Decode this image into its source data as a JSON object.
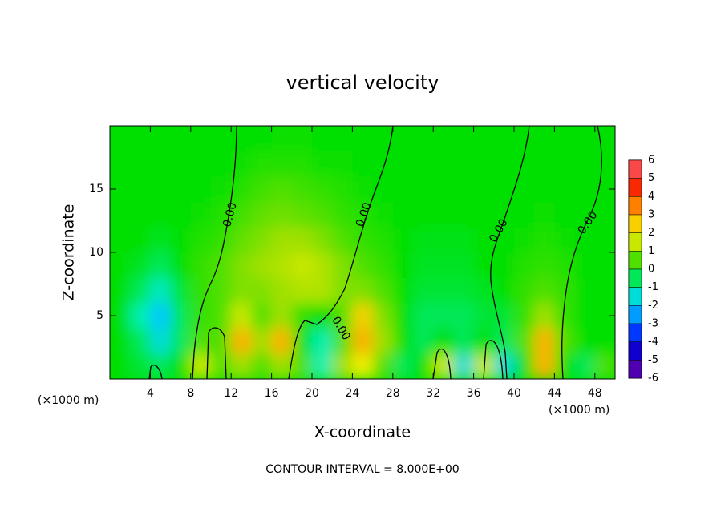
{
  "chart_data": {
    "type": "heatmap",
    "title": "vertical velocity",
    "x_label": "X-coordinate",
    "y_label": "Z-coordinate",
    "x_unit": "(×1000 m)",
    "footer": "CONTOUR INTERVAL = 8.000E+00",
    "contour_label": "0.00",
    "x": [
      1,
      3,
      5,
      7,
      9,
      11,
      13,
      15,
      17,
      19,
      21,
      23,
      25,
      27,
      29,
      31,
      33,
      35,
      37,
      39,
      41,
      43,
      45,
      47,
      49
    ],
    "z": [
      1,
      3,
      5,
      7,
      9,
      11,
      13,
      15,
      17,
      19
    ],
    "values": [
      [
        0,
        -0.3,
        -0.5,
        0,
        1.5,
        0.5,
        1,
        0.5,
        1,
        0.5,
        -1,
        1,
        2,
        0.5,
        -0.5,
        0,
        1.5,
        -1.5,
        1.5,
        -1.5,
        0,
        3,
        0,
        -0.5,
        0.5
      ],
      [
        0,
        -0.5,
        -1.5,
        -0.5,
        0.5,
        0.5,
        3,
        1,
        3,
        0,
        -1,
        0.5,
        3,
        1,
        0,
        -0.5,
        0,
        -0.5,
        0,
        -0.5,
        0.5,
        3,
        0.5,
        0,
        0
      ],
      [
        0,
        -1,
        -2,
        -0.5,
        0.3,
        0.5,
        1.5,
        0.5,
        1,
        0.3,
        0,
        0.5,
        2.5,
        0.8,
        0,
        -0.5,
        -0.5,
        -0.5,
        -0.3,
        -0.3,
        0.3,
        1,
        0.3,
        0,
        0
      ],
      [
        0,
        -0.5,
        -1.2,
        -0.3,
        0.3,
        0.5,
        0.8,
        0.8,
        1,
        1.2,
        1.2,
        0.8,
        0.8,
        0.5,
        0,
        -0.3,
        -0.3,
        -0.3,
        -0.2,
        0,
        0.3,
        0.5,
        0.3,
        0,
        0
      ],
      [
        0,
        -0.2,
        -0.5,
        0,
        0.3,
        0.5,
        0.8,
        1,
        1.2,
        1.5,
        1.2,
        0.8,
        0.5,
        0.3,
        0,
        -0.2,
        -0.2,
        -0.2,
        0,
        0,
        0.2,
        0.3,
        0.2,
        0,
        0
      ],
      [
        0,
        0,
        -0.2,
        0,
        0.2,
        0.3,
        0.6,
        0.8,
        1,
        1,
        0.8,
        0.5,
        0.3,
        0.2,
        0,
        -0.1,
        -0.1,
        -0.1,
        0,
        0,
        0.1,
        0.2,
        0.1,
        0,
        0
      ],
      [
        0,
        0,
        0,
        0,
        0.1,
        0.2,
        0.4,
        0.6,
        0.7,
        0.6,
        0.5,
        0.3,
        0.2,
        0.1,
        0,
        0,
        0,
        0,
        0,
        0,
        0,
        0.1,
        0,
        0,
        0
      ],
      [
        0,
        0,
        0,
        0,
        0,
        0.1,
        0.2,
        0.4,
        0.5,
        0.4,
        0.3,
        0.2,
        0.1,
        0,
        0,
        0,
        0,
        0,
        0,
        0,
        0,
        0,
        0,
        0,
        0
      ],
      [
        0,
        0,
        0,
        0,
        0,
        0,
        0.1,
        0.2,
        0.2,
        0.2,
        0.1,
        0.1,
        0,
        0,
        0,
        0,
        0,
        0,
        0,
        0,
        0,
        0,
        0,
        0,
        0
      ],
      [
        0,
        0,
        0,
        0,
        0,
        0,
        0,
        0,
        0.1,
        0.1,
        0,
        0,
        0,
        0,
        0,
        0,
        0,
        0,
        0,
        0,
        0,
        0,
        0,
        0,
        0
      ]
    ],
    "xlim": [
      0,
      50
    ],
    "ylim": [
      0,
      20
    ],
    "xticks": [
      4,
      8,
      12,
      16,
      20,
      24,
      28,
      32,
      36,
      40,
      44,
      48
    ],
    "yticks": [
      5,
      10,
      15
    ],
    "cbar_ticks": [
      6,
      5,
      4,
      3,
      2,
      1,
      0,
      -1,
      -2,
      -3,
      -4,
      -5,
      -6
    ],
    "colormap": [
      "#ff9090",
      "#f00000",
      "#ff5000",
      "#ffb000",
      "#f0f000",
      "#a0e000",
      "#00e000",
      "#00f0b0",
      "#00c8ff",
      "#0070ff",
      "#0000ff",
      "#2000a0",
      "#8000c0"
    ]
  }
}
